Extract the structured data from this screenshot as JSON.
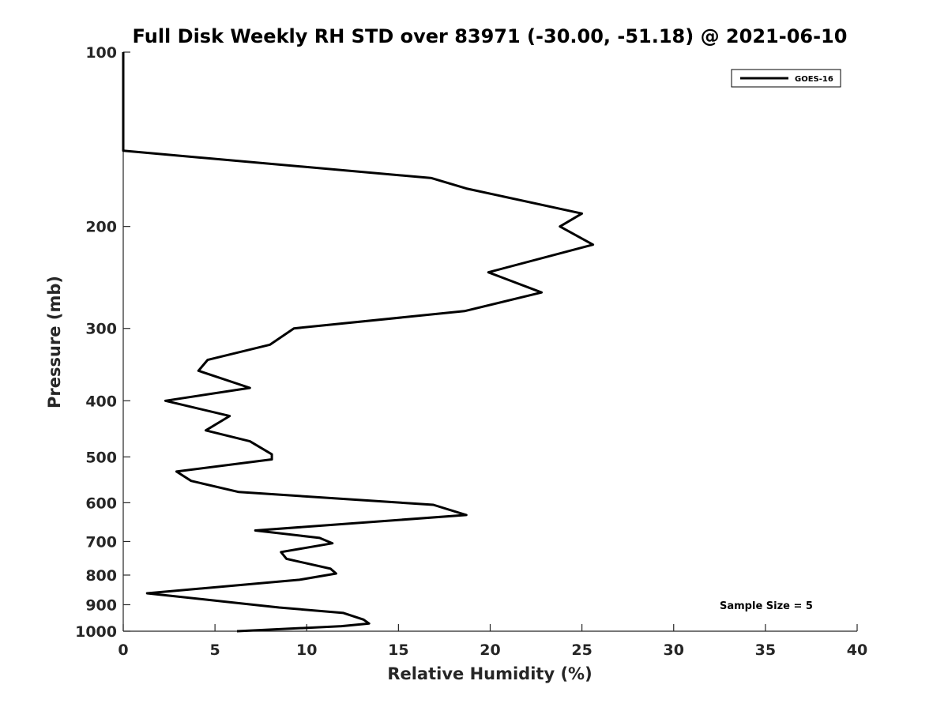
{
  "chart_data": {
    "type": "line",
    "title": "Full Disk Weekly RH STD over 83971 (-30.00, -51.18) @ 2021-06-10",
    "xlabel": "Relative Humidity (%)",
    "ylabel": "Pressure (mb)",
    "xlim": [
      0,
      40
    ],
    "ylim": [
      100,
      1000
    ],
    "yscale": "log",
    "y_reversed": true,
    "grid": false,
    "xticks": [
      0,
      5,
      10,
      15,
      20,
      25,
      30,
      35,
      40
    ],
    "xtick_labels": [
      "0",
      "5",
      "10",
      "15",
      "20",
      "25",
      "30",
      "35",
      "40"
    ],
    "yticks": [
      100,
      200,
      300,
      400,
      500,
      600,
      700,
      800,
      900,
      1000
    ],
    "ytick_labels": [
      "100",
      "200",
      "300",
      "400",
      "500",
      "600",
      "700",
      "800",
      "900",
      "1000"
    ],
    "legend": {
      "position": "top-right",
      "entries": [
        "GOES-16"
      ]
    },
    "annotation": "Sample Size = 5",
    "series": [
      {
        "name": "GOES-16",
        "color": "#000000",
        "x": [
          0.0,
          0.0,
          0.0,
          16.8,
          18.7,
          25.0,
          23.8,
          25.6,
          19.9,
          22.8,
          18.6,
          9.3,
          8.0,
          4.6,
          4.1,
          6.9,
          2.3,
          5.8,
          4.5,
          6.9,
          8.1,
          8.1,
          2.9,
          3.7,
          6.3,
          16.9,
          18.7,
          7.2,
          10.7,
          11.4,
          8.6,
          8.9,
          11.3,
          11.6,
          9.6,
          1.3,
          8.5,
          12.0,
          13.1,
          13.4,
          11.9,
          6.2
        ],
        "y": [
          100,
          140,
          148,
          165,
          172,
          190,
          200,
          215,
          240,
          260,
          280,
          300,
          320,
          340,
          355,
          380,
          400,
          425,
          450,
          470,
          495,
          505,
          530,
          550,
          575,
          605,
          630,
          670,
          690,
          705,
          730,
          750,
          780,
          795,
          815,
          860,
          910,
          930,
          955,
          970,
          980,
          1000
        ]
      }
    ]
  }
}
